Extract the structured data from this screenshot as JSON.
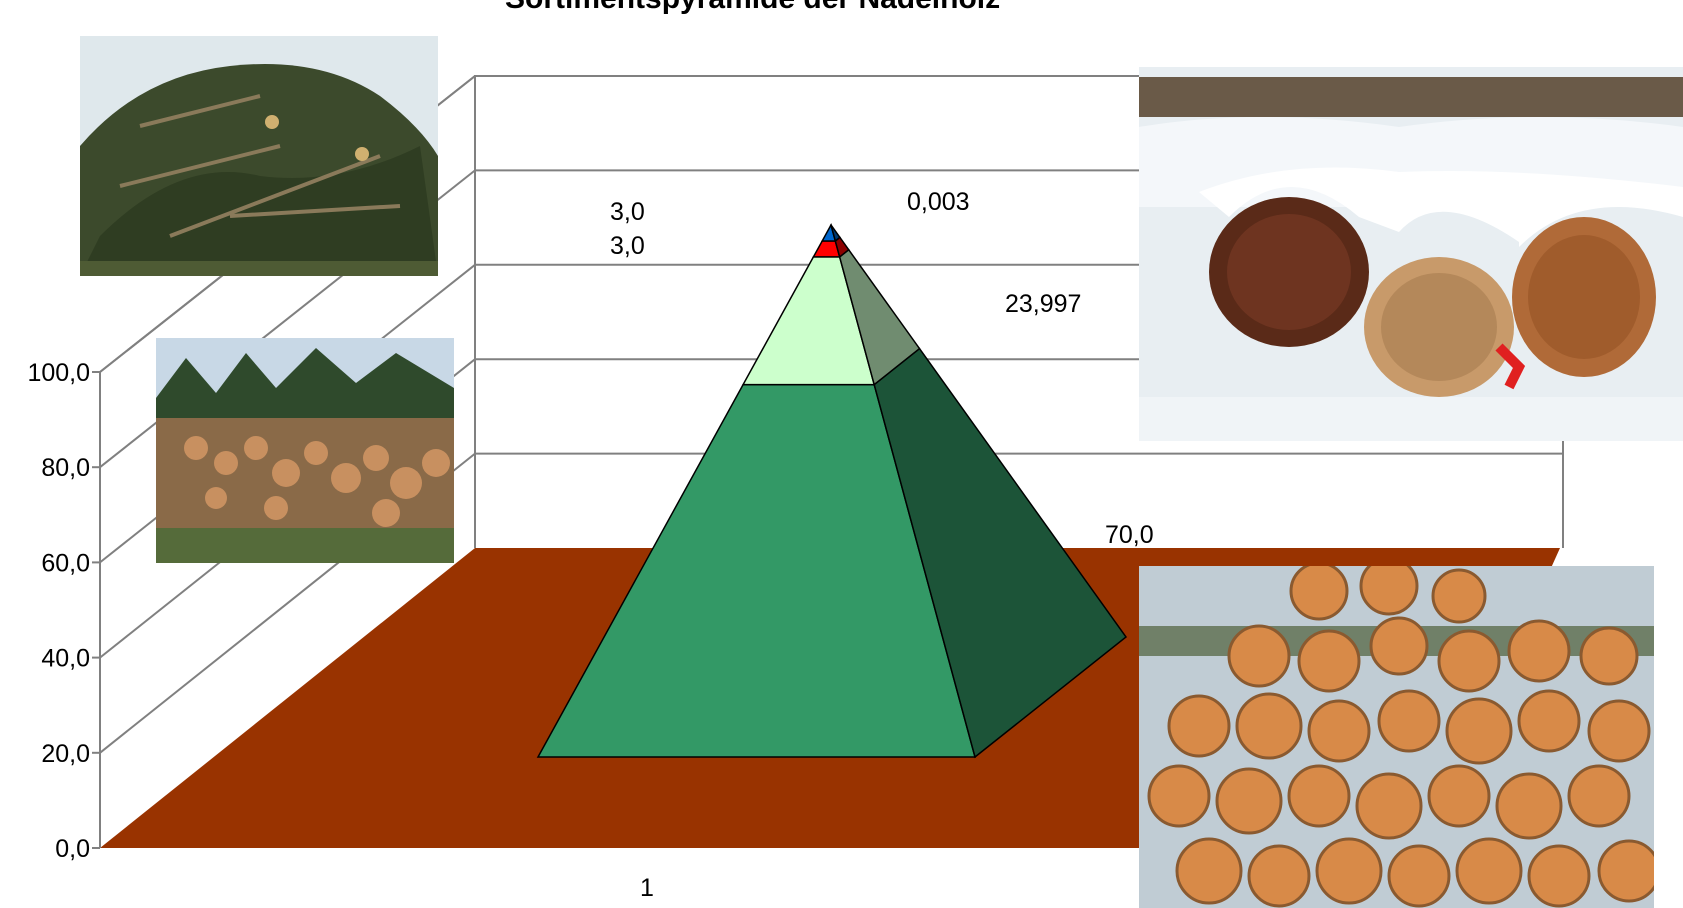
{
  "chart_data": {
    "type": "pyramid",
    "title": "Sortimentspyramide der Nadelholz",
    "categories": [
      "1"
    ],
    "ylim": [
      0,
      100
    ],
    "yticks": [
      "0,0",
      "20,0",
      "40,0",
      "60,0",
      "80,0",
      "100,0"
    ],
    "grid": true,
    "legend": "none",
    "series": [
      {
        "values": [
          70.0
        ],
        "label": "70,0",
        "color": "#339966"
      },
      {
        "values": [
          23.997
        ],
        "label": "23,997",
        "color": "#ccffcc"
      },
      {
        "values": [
          3.0
        ],
        "label": "3,0",
        "color": "#ff0000"
      },
      {
        "values": [
          3.0
        ],
        "label": "3,0",
        "color": "#0066cc"
      },
      {
        "values": [
          0.003
        ],
        "label": "0,003",
        "color": "#33ccff"
      }
    ],
    "floor_color": "#993300"
  }
}
